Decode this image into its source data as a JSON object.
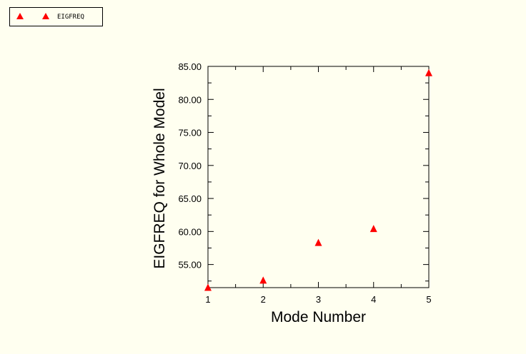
{
  "legend": {
    "label": "EIGFREQ",
    "marker_color": "#ff0000"
  },
  "chart_data": {
    "type": "scatter",
    "title": "",
    "xlabel": "Mode Number",
    "ylabel": "EIGFREQ for Whole Model",
    "xlim": [
      1,
      5
    ],
    "ylim": [
      51.5,
      85.0
    ],
    "x_ticks": [
      1,
      2,
      3,
      4,
      5
    ],
    "x_tick_labels": [
      "1",
      "2",
      "3",
      "4",
      "5"
    ],
    "y_ticks": [
      55.0,
      60.0,
      65.0,
      70.0,
      75.0,
      80.0,
      85.0
    ],
    "y_tick_labels": [
      "55.00",
      "60.00",
      "65.00",
      "70.00",
      "75.00",
      "80.00",
      "85.00"
    ],
    "grid": false,
    "legend_position": "top-left",
    "marker": "triangle",
    "series": [
      {
        "name": "EIGFREQ",
        "color": "#ff0000",
        "x": [
          1,
          2,
          3,
          4,
          5
        ],
        "y": [
          51.5,
          52.6,
          58.3,
          60.4,
          84.0
        ]
      }
    ]
  }
}
